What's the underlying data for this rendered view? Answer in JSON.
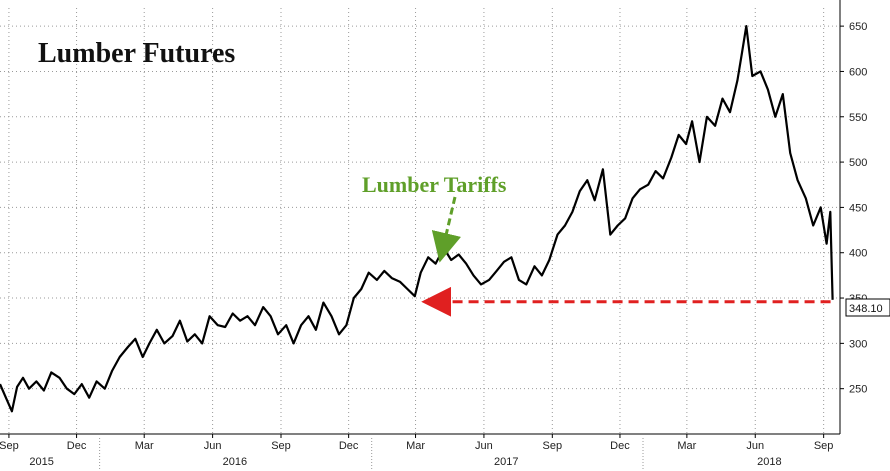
{
  "chart_data": {
    "type": "line",
    "title": "Lumber Futures",
    "ylim": [
      200,
      670
    ],
    "y_ticks": [
      250,
      300,
      350,
      400,
      450,
      500,
      550,
      600,
      650
    ],
    "grid": true,
    "month_ticks": [
      {
        "label": "Sep",
        "date": "2015-09-01"
      },
      {
        "label": "Dec",
        "date": "2015-12-01"
      },
      {
        "label": "Mar",
        "date": "2016-03-01"
      },
      {
        "label": "Jun",
        "date": "2016-06-01"
      },
      {
        "label": "Sep",
        "date": "2016-09-01"
      },
      {
        "label": "Dec",
        "date": "2016-12-01"
      },
      {
        "label": "Mar",
        "date": "2017-03-01"
      },
      {
        "label": "Jun",
        "date": "2017-06-01"
      },
      {
        "label": "Sep",
        "date": "2017-09-01"
      },
      {
        "label": "Dec",
        "date": "2017-12-01"
      },
      {
        "label": "Mar",
        "date": "2018-03-01"
      },
      {
        "label": "Jun",
        "date": "2018-06-01"
      },
      {
        "label": "Sep",
        "date": "2018-09-01"
      }
    ],
    "year_labels": [
      {
        "label": "2015",
        "date": "2015-10-15"
      },
      {
        "label": "2016",
        "date": "2016-07-01"
      },
      {
        "label": "2017",
        "date": "2017-07-01"
      },
      {
        "label": "2018",
        "date": "2018-06-20"
      }
    ],
    "year_dividers": [
      "2016-01-01",
      "2017-01-01",
      "2018-01-01"
    ],
    "series": [
      {
        "color": "#000000",
        "x": [
          "2015-08-20",
          "2015-08-28",
          "2015-09-05",
          "2015-09-12",
          "2015-09-20",
          "2015-09-28",
          "2015-10-08",
          "2015-10-18",
          "2015-10-28",
          "2015-11-08",
          "2015-11-18",
          "2015-11-28",
          "2015-12-08",
          "2015-12-18",
          "2015-12-28",
          "2016-01-08",
          "2016-01-18",
          "2016-01-28",
          "2016-02-08",
          "2016-02-18",
          "2016-02-28",
          "2016-03-08",
          "2016-03-18",
          "2016-03-28",
          "2016-04-08",
          "2016-04-18",
          "2016-04-28",
          "2016-05-08",
          "2016-05-18",
          "2016-05-28",
          "2016-06-08",
          "2016-06-18",
          "2016-06-28",
          "2016-07-08",
          "2016-07-18",
          "2016-07-28",
          "2016-08-08",
          "2016-08-18",
          "2016-08-28",
          "2016-09-08",
          "2016-09-18",
          "2016-09-28",
          "2016-10-08",
          "2016-10-18",
          "2016-10-28",
          "2016-11-08",
          "2016-11-18",
          "2016-11-28",
          "2016-12-08",
          "2016-12-18",
          "2016-12-28",
          "2017-01-08",
          "2017-01-18",
          "2017-01-28",
          "2017-02-08",
          "2017-02-18",
          "2017-02-28",
          "2017-03-08",
          "2017-03-18",
          "2017-03-28",
          "2017-04-08",
          "2017-04-18",
          "2017-04-28",
          "2017-05-08",
          "2017-05-18",
          "2017-05-28",
          "2017-06-08",
          "2017-06-18",
          "2017-06-28",
          "2017-07-08",
          "2017-07-18",
          "2017-07-28",
          "2017-08-08",
          "2017-08-18",
          "2017-08-28",
          "2017-09-08",
          "2017-09-18",
          "2017-09-28",
          "2017-10-08",
          "2017-10-18",
          "2017-10-28",
          "2017-11-08",
          "2017-11-18",
          "2017-11-28",
          "2017-12-08",
          "2017-12-18",
          "2017-12-28",
          "2018-01-08",
          "2018-01-18",
          "2018-01-28",
          "2018-02-08",
          "2018-02-18",
          "2018-02-28",
          "2018-03-08",
          "2018-03-18",
          "2018-03-28",
          "2018-04-08",
          "2018-04-18",
          "2018-04-28",
          "2018-05-08",
          "2018-05-14",
          "2018-05-20",
          "2018-05-28",
          "2018-06-08",
          "2018-06-18",
          "2018-06-28",
          "2018-07-08",
          "2018-07-18",
          "2018-07-28",
          "2018-08-08",
          "2018-08-18",
          "2018-08-28",
          "2018-09-05",
          "2018-09-10",
          "2018-09-13"
        ],
        "values": [
          255,
          240,
          225,
          252,
          262,
          250,
          258,
          248,
          268,
          262,
          250,
          244,
          255,
          240,
          258,
          250,
          270,
          285,
          296,
          305,
          285,
          300,
          315,
          300,
          308,
          325,
          302,
          310,
          300,
          330,
          320,
          318,
          333,
          325,
          330,
          320,
          340,
          330,
          310,
          320,
          300,
          320,
          330,
          315,
          345,
          330,
          310,
          320,
          350,
          360,
          378,
          370,
          380,
          372,
          368,
          360,
          352,
          378,
          395,
          388,
          405,
          392,
          398,
          388,
          375,
          365,
          370,
          380,
          390,
          395,
          370,
          365,
          385,
          375,
          392,
          420,
          430,
          445,
          468,
          480,
          458,
          492,
          420,
          430,
          438,
          460,
          470,
          475,
          490,
          482,
          505,
          530,
          520,
          545,
          500,
          550,
          540,
          570,
          555,
          590,
          620,
          650,
          595,
          600,
          580,
          550,
          575,
          510,
          480,
          460,
          430,
          450,
          410,
          445,
          348.1
        ]
      }
    ],
    "last_value_label": "348.10",
    "annotations": [
      {
        "text": "Lumber Tariffs",
        "color": "#5f9f29",
        "arrow": "dashed-green"
      },
      {
        "type": "dashed-arrow",
        "color": "#e02020",
        "from": {
          "date": "2018-09-13",
          "value": 348.1
        },
        "to": {
          "date": "2017-03-10",
          "value": 348.1
        }
      }
    ]
  }
}
